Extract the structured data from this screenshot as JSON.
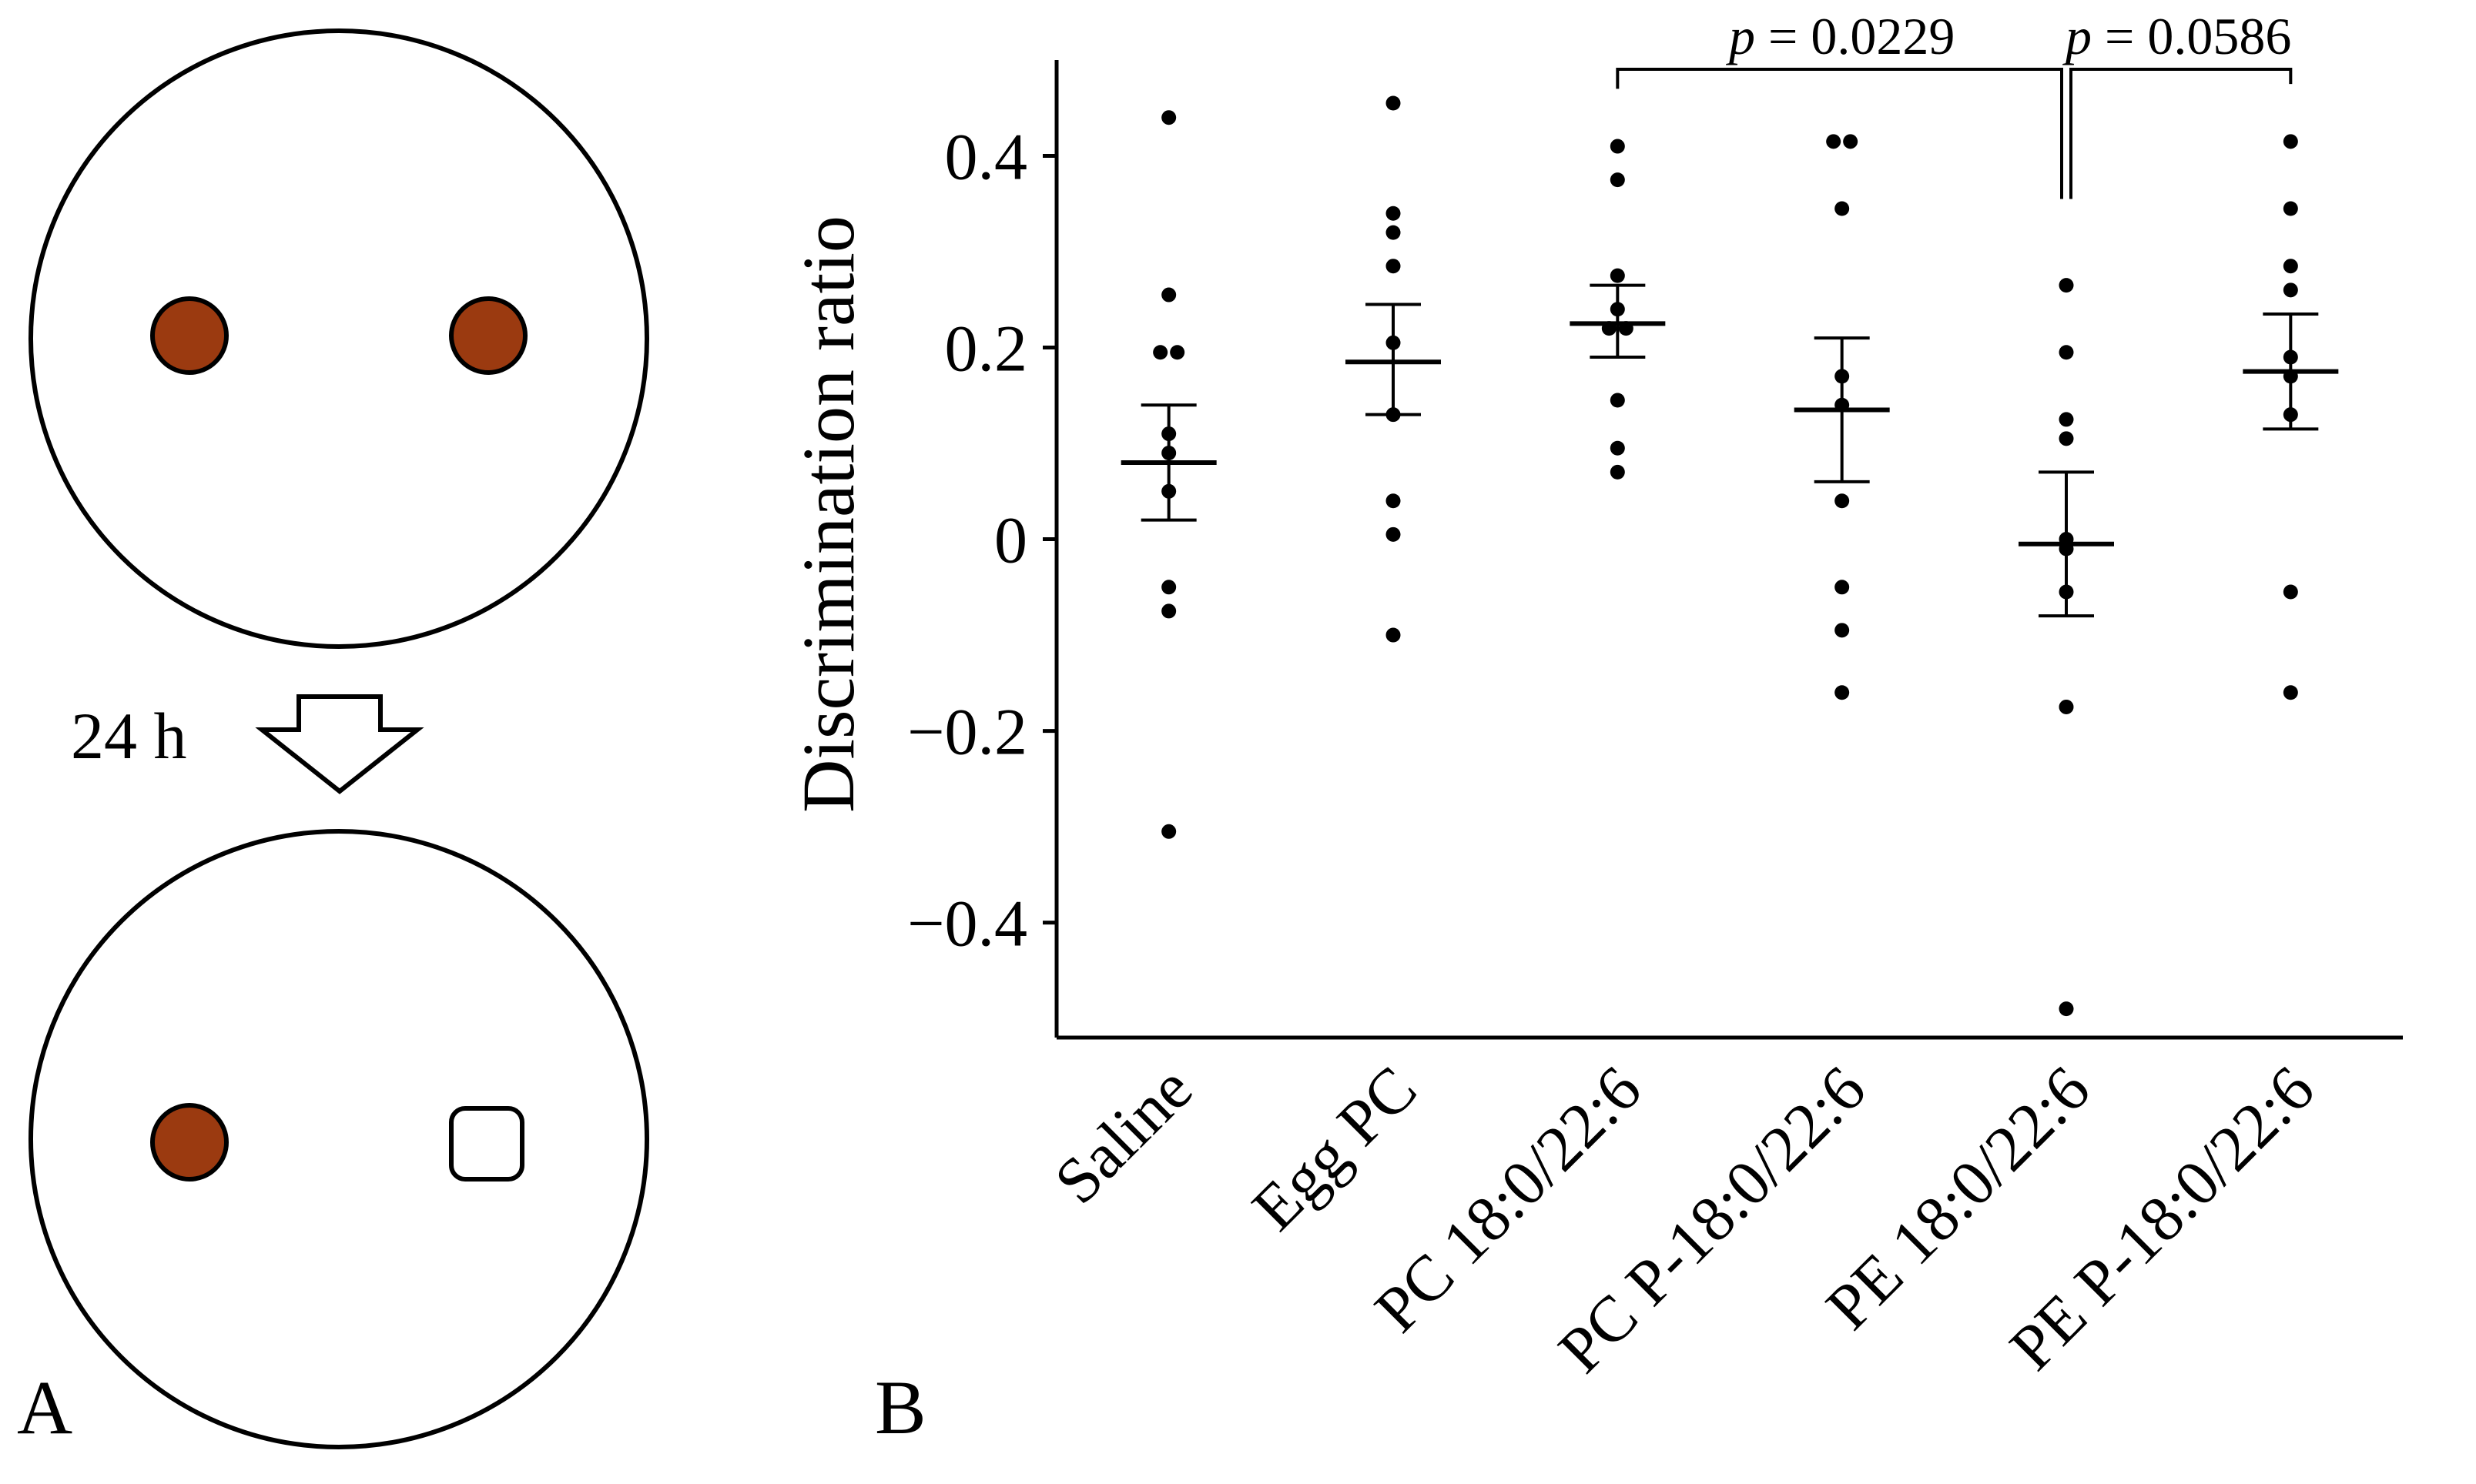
{
  "panel_a": {
    "label": "A",
    "arrow_label": "24 h",
    "colors": {
      "object": "#9b3a10",
      "outline": "#000000"
    },
    "top_arena": {
      "objects": [
        "circle-object",
        "circle-object"
      ]
    },
    "bottom_arena": {
      "objects": [
        "circle-object",
        "square-object"
      ]
    }
  },
  "panel_b": {
    "label": "B"
  },
  "chart_data": {
    "type": "scatter",
    "ylabel": "Discrimination ratio",
    "xlabel": "",
    "ylim": [
      -0.52,
      0.5
    ],
    "yticks": [
      -0.4,
      -0.2,
      0,
      0.2,
      0.4
    ],
    "ytick_labels": [
      "−0.4",
      "−0.2",
      "0",
      "0.2",
      "0.4"
    ],
    "categories": [
      "Saline",
      "Egg PC",
      "PC 18:0/22:6",
      "PC P-18:0/22:6",
      "PE 18:0/22:6",
      "PE P-18:0/22:6"
    ],
    "groups": [
      {
        "name": "Saline",
        "points": [
          0.44,
          0.255,
          0.195,
          0.195,
          0.11,
          0.09,
          0.05,
          -0.05,
          -0.075,
          -0.305
        ],
        "mean": 0.08,
        "sem_low": 0.02,
        "sem_high": 0.14
      },
      {
        "name": "Egg PC",
        "points": [
          0.455,
          0.34,
          0.32,
          0.285,
          0.205,
          0.13,
          0.04,
          0.005,
          -0.1
        ],
        "mean": 0.185,
        "sem_low": 0.13,
        "sem_high": 0.245
      },
      {
        "name": "PC 18:0/22:6",
        "points": [
          0.41,
          0.375,
          0.275,
          0.24,
          0.22,
          0.22,
          0.145,
          0.095,
          0.07
        ],
        "mean": 0.225,
        "sem_low": 0.19,
        "sem_high": 0.265
      },
      {
        "name": "PC P-18:0/22:6",
        "points": [
          0.415,
          0.415,
          0.345,
          0.17,
          0.14,
          0.04,
          -0.05,
          -0.095,
          -0.16
        ],
        "mean": 0.135,
        "sem_low": 0.06,
        "sem_high": 0.21
      },
      {
        "name": "PE 18:0/22:6",
        "points": [
          0.265,
          0.195,
          0.125,
          0.105,
          0.0,
          -0.01,
          -0.055,
          -0.175,
          -0.49
        ],
        "mean": -0.005,
        "sem_low": -0.08,
        "sem_high": 0.07
      },
      {
        "name": "PE P-18:0/22:6",
        "points": [
          0.415,
          0.345,
          0.285,
          0.26,
          0.19,
          0.17,
          0.13,
          -0.055,
          -0.16
        ],
        "mean": 0.175,
        "sem_low": 0.115,
        "sem_high": 0.235
      }
    ],
    "annotations": [
      {
        "from": "PC 18:0/22:6",
        "to": "PE 18:0/22:6",
        "p_symbol": "p",
        "value_text": " = 0.0229"
      },
      {
        "from": "PE 18:0/22:6",
        "to": "PE P-18:0/22:6",
        "p_symbol": "p",
        "value_text": " = 0.0586"
      }
    ]
  }
}
